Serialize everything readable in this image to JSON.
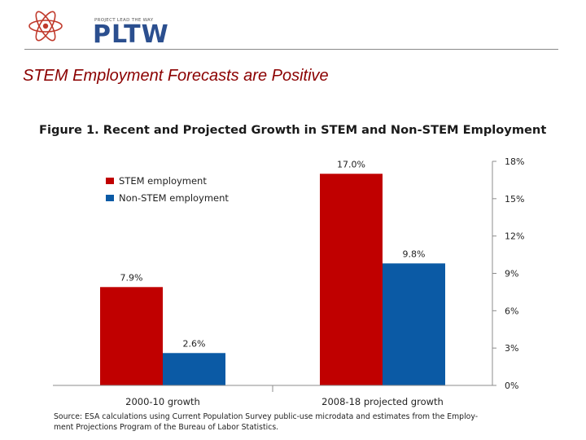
{
  "logo": {
    "tagline": "PROJECT LEAD THE WAY",
    "wordmark": "PLTW",
    "colors": {
      "atom": "#c0392b",
      "text": "#2b4f8f"
    }
  },
  "slide": {
    "title": "STEM Employment Forecasts are Positive",
    "title_color": "#8b0000"
  },
  "chart_data": {
    "type": "bar",
    "title": "Figure 1. Recent and Projected Growth in STEM and Non-STEM Employment",
    "categories": [
      "2000-10 growth",
      "2008-18 projected growth"
    ],
    "series": [
      {
        "name": "STEM employment",
        "values": [
          7.9,
          17.0
        ],
        "labels": [
          "7.9%",
          "17.0%"
        ],
        "color": "#c00000"
      },
      {
        "name": "Non-STEM employment",
        "values": [
          2.6,
          9.8
        ],
        "labels": [
          "2.6%",
          "9.8%"
        ],
        "color": "#0b5aa5"
      }
    ],
    "ylim": [
      0,
      18
    ],
    "y_ticks": [
      0,
      3,
      6,
      9,
      12,
      15,
      18
    ],
    "y_tick_labels": [
      "0%",
      "3%",
      "6%",
      "9%",
      "12%",
      "15%",
      "18%"
    ],
    "y_axis_side": "right",
    "legend": "top-left",
    "grid": false,
    "xlabel": "",
    "ylabel": ""
  },
  "source": {
    "line1": "Source: ESA calculations using Current Population Survey public-use microdata and estimates from the Employ-",
    "line2": "ment Projections Program of the Bureau of Labor Statistics."
  }
}
